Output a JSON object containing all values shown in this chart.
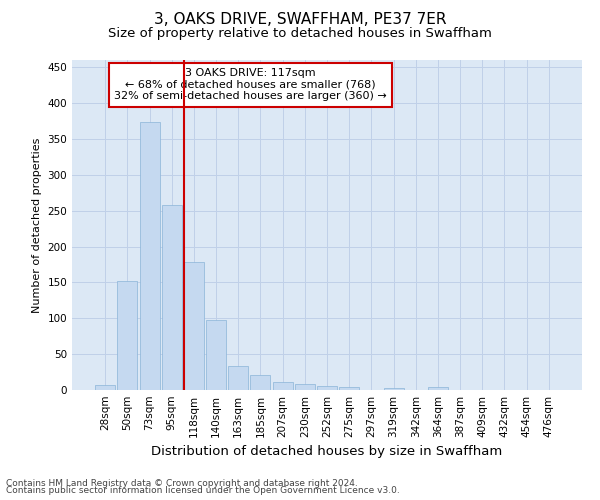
{
  "title": "3, OAKS DRIVE, SWAFFHAM, PE37 7ER",
  "subtitle": "Size of property relative to detached houses in Swaffham",
  "xlabel": "Distribution of detached houses by size in Swaffham",
  "ylabel": "Number of detached properties",
  "footer_line1": "Contains HM Land Registry data © Crown copyright and database right 2024.",
  "footer_line2": "Contains public sector information licensed under the Open Government Licence v3.0.",
  "categories": [
    "28sqm",
    "50sqm",
    "73sqm",
    "95sqm",
    "118sqm",
    "140sqm",
    "163sqm",
    "185sqm",
    "207sqm",
    "230sqm",
    "252sqm",
    "275sqm",
    "297sqm",
    "319sqm",
    "342sqm",
    "364sqm",
    "387sqm",
    "409sqm",
    "432sqm",
    "454sqm",
    "476sqm"
  ],
  "values": [
    7,
    152,
    373,
    258,
    179,
    97,
    33,
    21,
    11,
    9,
    5,
    4,
    0,
    3,
    0,
    4,
    0,
    0,
    0,
    0,
    0
  ],
  "bar_color": "#c5d9f0",
  "bar_edge_color": "#8ab4d8",
  "annotation_box_text": "3 OAKS DRIVE: 117sqm\n← 68% of detached houses are smaller (768)\n32% of semi-detached houses are larger (360) →",
  "annotation_box_color": "#ffffff",
  "annotation_box_edge_color": "#cc0000",
  "vline_x_index": 4,
  "vline_color": "#cc0000",
  "ylim": [
    0,
    460
  ],
  "yticks": [
    0,
    50,
    100,
    150,
    200,
    250,
    300,
    350,
    400,
    450
  ],
  "grid_color": "#c0d0e8",
  "background_color": "#dce8f5",
  "title_fontsize": 11,
  "subtitle_fontsize": 9.5,
  "xlabel_fontsize": 9.5,
  "ylabel_fontsize": 8,
  "tick_fontsize": 7.5,
  "annotation_fontsize": 8,
  "footer_fontsize": 6.5
}
